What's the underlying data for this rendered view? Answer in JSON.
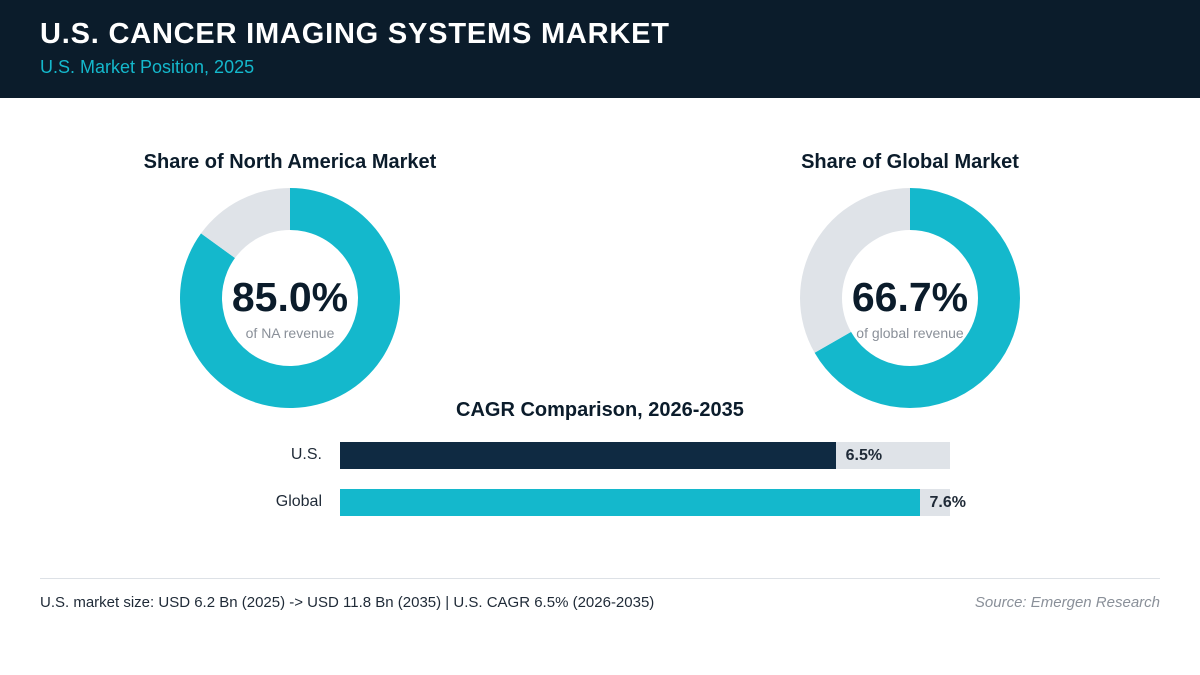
{
  "header": {
    "title": "U.S. CANCER IMAGING SYSTEMS MARKET",
    "subtitle": "U.S. Market Position, 2025"
  },
  "colors": {
    "header_bg": "#0b1c2b",
    "accent_teal": "#14b8cc",
    "navy": "#0f2a42",
    "track_gray": "#dfe3e8"
  },
  "chart_data": [
    {
      "type": "pie",
      "title": "Share of North America Market",
      "value_label": "85.0%",
      "caption": "of NA revenue",
      "slices": [
        {
          "value": 85.0,
          "color": "#14b8cc"
        },
        {
          "value": 15.0,
          "color": "#dfe3e8"
        }
      ]
    },
    {
      "type": "pie",
      "title": "Share of Global Market",
      "value_label": "66.7%",
      "caption": "of global revenue",
      "slices": [
        {
          "value": 66.7,
          "color": "#14b8cc"
        },
        {
          "value": 33.3,
          "color": "#dfe3e8"
        }
      ]
    },
    {
      "type": "bar",
      "title": "CAGR Comparison, 2026-2035",
      "orientation": "horizontal",
      "categories": [
        "U.S.",
        "Global"
      ],
      "values": [
        6.5,
        7.6
      ],
      "value_labels": [
        "6.5%",
        "7.6%"
      ],
      "colors": [
        "#0f2a42",
        "#14b8cc"
      ],
      "xlim": [
        0,
        8.0
      ]
    }
  ],
  "footer": {
    "note": "U.S. market size: USD 6.2 Bn (2025) -> USD 11.8 Bn (2035)  |  U.S. CAGR 6.5% (2026-2035)",
    "source": "Source: Emergen Research"
  }
}
